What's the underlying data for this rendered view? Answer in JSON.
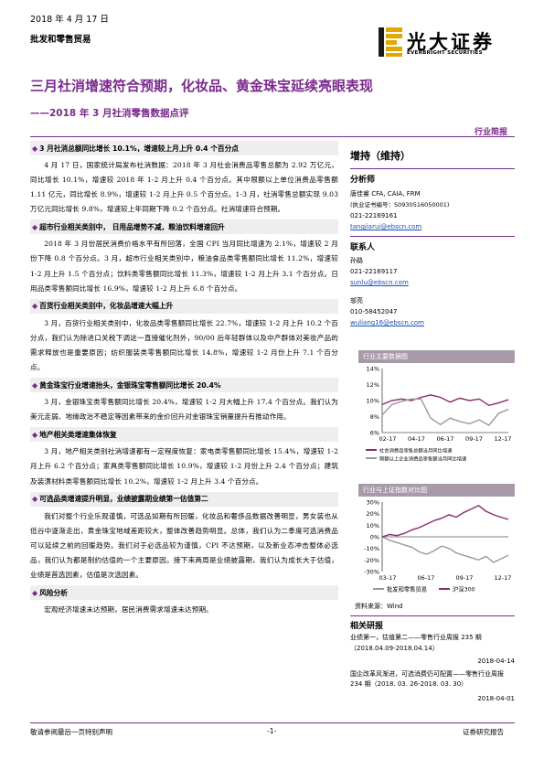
{
  "header": {
    "date": "2018 年 4 月 17 日",
    "industry": "批发和零售贸易",
    "logo_cn": "光大证券",
    "logo_en": "EVERBRIGHT SECURITIES",
    "title": "三月社消增速符合预期，化妆品、黄金珠宝延续亮眼表现",
    "subtitle": "——2018 年 3 月社消零售数据点评",
    "report_type": "行业简报"
  },
  "sections": [
    {
      "heading": "3 月社消总额同比增长 10.1%，增速较上月上升 0.4 个百分点",
      "body": "4 月 17 日，国家统计局发布社消数据：2018 年 3 月社会消费品零售总额为 2.92 万亿元，同比增长 10.1%，增速较 2018 年 1-2 月上升 0.4 个百分点。其中限额以上单位消费品零售额 1.11 亿元，同比增长 8.9%，增速较 1-2 月上升 0.5 个百分点。1-3 月，社消零售总额实现 9.03 万亿元同比增长 9.8%，增速较上年同期下降 0.2 个百分点。社消增速符合预期。"
    },
    {
      "heading": "超市行业相关类别中，  日用品增势不减，粮油饮料增速回升",
      "body": "2018 年 3 月份居民消费价格水平有所回落，全国 CPI 当月同比增速为 2.1%，增速较 2 月份下降 0.8 个百分点。3 月，超市行业相关类别中，粮油食品类零售额同比增长 11.2%，增速较 1-2 月上升 1.5 个百分点；饮料类零售额同比增长 11.3%，增速较 1-2 月上升 3.1 个百分点。日用品类零售额同比增长 16.9%，增速较 1-2 月上升 6.8 个百分点。"
    },
    {
      "heading": "百货行业相关类别中，化妆品增速大幅上升",
      "body": "3 月，百货行业相关类别中，化妆品类零售额同比增长 22.7%，增速较 1-2 月上升 10.2 个百分点，我们认为除进口关税下调这一直接催化剂外，90/00 后年轻群体以及中产群体对美妆产品的需求释放也是重要原因；纺织服装类零售额同比增长 14.8%，增速较 1-2 月份上升 7.1 个百分点。"
    },
    {
      "heading": "黄金珠宝行业增速抬头，金银珠宝零售额同比增长 20.4%",
      "body": "3 月，金银珠宝类零售额同比增长 20.4%，增速较 1-2 月大幅上升 17.4 个百分点。我们认为美元走弱、地缘政治不稳定等因素带来的金价回升对金银珠宝销量提升有推动作用。"
    },
    {
      "heading": "地产相关类增速集体恢复",
      "body": "3 月，地产相关类别社消增速都有一定程度恢复：家电类零售额同比增长 15.4%，增速较 1-2 月上升 6.2 个百分点；家具类零售额同比增长 10.9%，增速较 1-2 月份上升 2.4 个百分点；建筑及装潢材料类零售额同比增长 10.2%，增速较 1-2 月上升 3.4 个百分点。"
    },
    {
      "heading": "可选品类增速提升明显，业绩披露期业绩第一估值第二",
      "body": "我们对整个行业乐观谨慎，可选品如期有所回暖，化妆品和奢侈品数据改善明显，男女装也从低谷中逐渐走出，黄金珠宝地域差距较大，整体改善趋势明显。总体，我们认为二季度可选消费品可以延续之前的回暖趋势。我们对于必选品较为谨慎，CPI 不达预期，以及新业态冲击整体必选品，我们认为都是制约估值的一个主要原因。接下来两周是业绩披露期，我们认为成长大于估值，业绩是首选因素，估值是次选因素。"
    },
    {
      "heading": "风险分析",
      "body": "宏观经济增速未达预期，居民消费需求增速未达预期。"
    }
  ],
  "sidebar": {
    "rating": "增持（维持）",
    "analysts_heading": "分析师",
    "analyst_name": "唐佳睿 CFA, CAIA, FRM",
    "analyst_cert": "(执业证书编号：S0930516050001)",
    "analyst_phone": "021-22169161",
    "analyst_email": "tangjiarui@ebscn.com",
    "contacts_heading": "联系人",
    "contact1_name": "孙路",
    "contact1_phone": "021-22169117",
    "contact1_email": "sunlu@ebscn.com",
    "contact2_name": "邬亮",
    "contact2_phone": "010-58452047",
    "contact2_email": "wuliang16@ebscn.com",
    "chart1_title": "行业主要数据图",
    "chart2_title": "行业与上证指数对比图",
    "source": "资料来源：Wind",
    "related_heading": "相关研报",
    "related1": "业绩第一，估值第二——零售行业周报 235 期（2018.04.09-2018.04.14）",
    "related1_date": "2018-04-14",
    "related2": "国企改革风渐进，可选消费仍可配置——零售行业周报 234 期（2018. 03. 26-2018. 03. 30）",
    "related2_date": "2018-04-01"
  },
  "footer": {
    "left": "敬请参阅最后一页特别声明",
    "center": "-1-",
    "right": "证券研究报告"
  },
  "chart_data": [
    {
      "type": "line",
      "title": "行业主要数据图",
      "x_ticks": [
        "02-17",
        "04-17",
        "06-17",
        "09-17",
        "12-17"
      ],
      "ylim": [
        6,
        14
      ],
      "y_ticks": [
        "14%",
        "12%",
        "10%",
        "8%",
        "6%"
      ],
      "series": [
        {
          "name": "社会消费品零售总额当月同比增速",
          "color": "#8a2a6d",
          "values": [
            9.5,
            10.0,
            10.2,
            10.0,
            10.4,
            10.7,
            10.4,
            9.8,
            10.3,
            10.0,
            10.2,
            9.4,
            9.7,
            10.1
          ]
        },
        {
          "name": "限额以上企业消费品零售额当月同比增速",
          "color": "#9a9a9a",
          "values": [
            8.2,
            9.5,
            9.9,
            10.2,
            10.2,
            7.8,
            7.0,
            7.8,
            7.4,
            7.1,
            7.6,
            6.9,
            8.4,
            8.9
          ]
        }
      ]
    },
    {
      "type": "line",
      "title": "行业与上证指数对比图",
      "x_ticks": [
        "03-17",
        "06-17",
        "09-17",
        "12-17"
      ],
      "ylim": [
        -30,
        30
      ],
      "y_ticks": [
        "30%",
        "20%",
        "10%",
        "0%",
        "-10%",
        "-20%",
        "-30%"
      ],
      "series": [
        {
          "name": "批发和零售贸易",
          "color": "#9a9a9a",
          "values": [
            0,
            -3,
            -5,
            -7,
            -9,
            -13,
            -15,
            -12,
            -8,
            -10,
            -14,
            -16,
            -18,
            -20,
            -17,
            -22,
            -19,
            -16
          ]
        },
        {
          "name": "沪深300",
          "color": "#8a2a6d",
          "values": [
            0,
            2,
            1,
            3,
            6,
            8,
            11,
            14,
            16,
            19,
            17,
            21,
            24,
            27,
            22,
            19,
            17,
            15
          ]
        }
      ]
    }
  ]
}
